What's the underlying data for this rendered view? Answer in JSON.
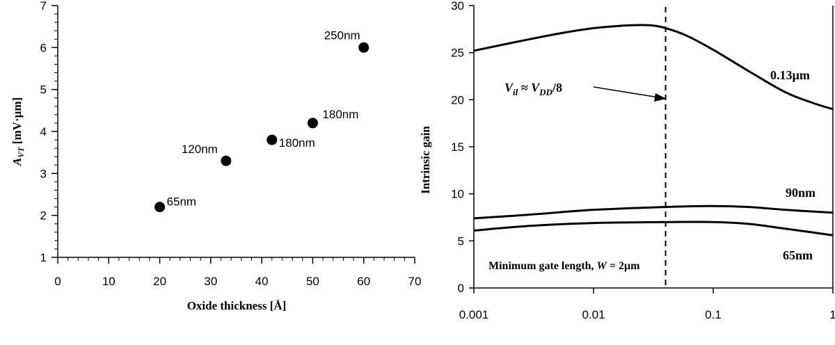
{
  "chart_data": [
    {
      "type": "scatter",
      "xlabel": "Oxide thickness [Å]",
      "ylabel_main": "A",
      "ylabel_sub": "VT",
      "ylabel_rest": " [mV·µm]",
      "xlim": [
        0,
        70
      ],
      "ylim": [
        1,
        7
      ],
      "xticks": [
        0,
        10,
        20,
        30,
        40,
        50,
        60,
        70
      ],
      "yticks": [
        1,
        2,
        3,
        4,
        5,
        6,
        7
      ],
      "points": [
        {
          "x": 20,
          "y": 2.2,
          "label": "65nm"
        },
        {
          "x": 33,
          "y": 3.3,
          "label": "120nm"
        },
        {
          "x": 42,
          "y": 3.8,
          "label": "180nm"
        },
        {
          "x": 50,
          "y": 4.2,
          "label": "180nm"
        },
        {
          "x": 60,
          "y": 6.0,
          "label": "250nm"
        }
      ]
    },
    {
      "type": "line",
      "ylabel": "Intrinsic gain",
      "xscale": "log",
      "xlim": [
        0.001,
        1
      ],
      "ylim": [
        0,
        30
      ],
      "xticks": [
        0.001,
        0.01,
        0.1,
        1
      ],
      "xtick_labels": [
        "0.001",
        "0.01",
        "0.1",
        "1"
      ],
      "yticks": [
        0,
        5,
        10,
        15,
        20,
        25,
        30
      ],
      "series": [
        {
          "name": "0.13µm",
          "x": [
            0.001,
            0.002,
            0.005,
            0.01,
            0.02,
            0.03,
            0.04,
            0.06,
            0.1,
            0.2,
            0.4,
            0.7,
            1
          ],
          "y": [
            25.2,
            26.0,
            27.0,
            27.6,
            27.9,
            27.9,
            27.6,
            26.8,
            25.3,
            23.0,
            20.8,
            19.6,
            19.0
          ]
        },
        {
          "name": "90nm",
          "x": [
            0.001,
            0.003,
            0.01,
            0.04,
            0.1,
            0.2,
            0.4,
            1
          ],
          "y": [
            7.4,
            7.8,
            8.3,
            8.6,
            8.7,
            8.6,
            8.3,
            8.0
          ]
        },
        {
          "name": "65nm",
          "x": [
            0.001,
            0.003,
            0.01,
            0.04,
            0.1,
            0.2,
            0.4,
            1
          ],
          "y": [
            6.1,
            6.6,
            6.9,
            7.0,
            7.0,
            6.8,
            6.3,
            5.6
          ]
        }
      ],
      "vline_x": 0.04,
      "annotation": {
        "v_main": "V",
        "v_sub": "il",
        "approx": " ≈ ",
        "vdd_main": "V",
        "vdd_sub": "DD",
        "vdd_rest": "/8"
      },
      "bottom_note": {
        "text": "Minimum gate length, ",
        "w": "W",
        "rest": " = 2µm"
      }
    }
  ]
}
